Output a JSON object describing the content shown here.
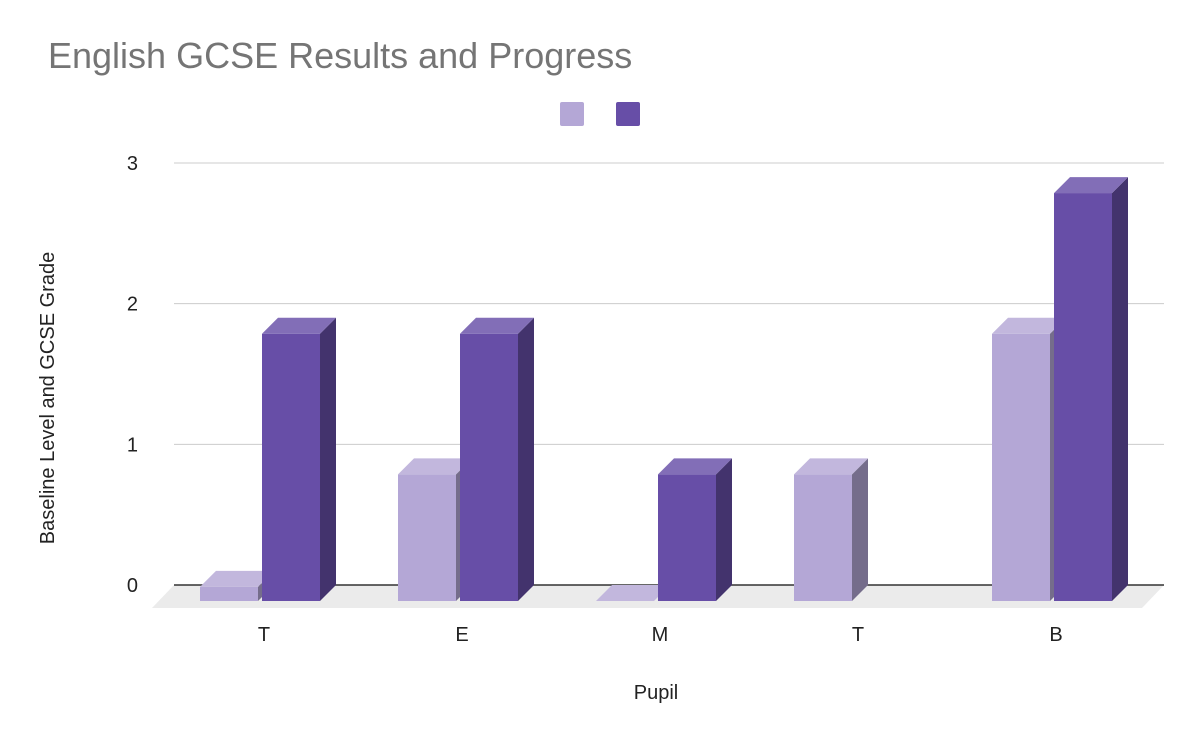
{
  "chart_data": {
    "type": "bar",
    "title": "English GCSE Results and Progress",
    "xlabel": "Pupil",
    "ylabel": "Baseline Level and GCSE Grade",
    "categories": [
      "T",
      "E",
      "M",
      "T",
      "B"
    ],
    "series": [
      {
        "values": [
          0.1,
          0.9,
          0,
          0.9,
          1.9
        ],
        "color": "#b4a7d6"
      },
      {
        "values": [
          1.9,
          1.9,
          0.9,
          null,
          2.9
        ],
        "color": "#674ea7"
      }
    ],
    "ylim": [
      0,
      3
    ],
    "yticks": [
      "0",
      "1",
      "2",
      "3"
    ],
    "grid": true,
    "legend_position": "top",
    "style": "3d-bar"
  }
}
